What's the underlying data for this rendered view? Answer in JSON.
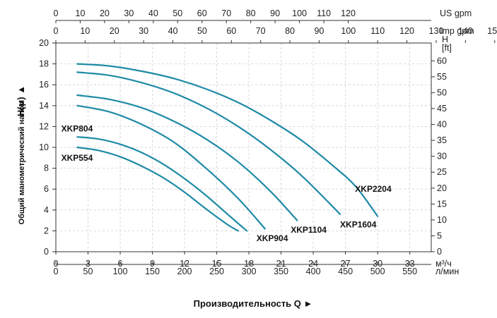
{
  "chart_data": {
    "type": "line",
    "xlabel": "Производительность Q",
    "ylabel": "Общий манометрический напор",
    "ylabel_unit": "H(м)",
    "x_unit": "м³/ч",
    "xlim": [
      0,
      35
    ],
    "ylim": [
      0,
      20
    ],
    "x_ticks": [
      0,
      3,
      6,
      9,
      12,
      15,
      18,
      21,
      24,
      27,
      30,
      33
    ],
    "y_ticks": [
      0,
      2,
      4,
      6,
      8,
      10,
      12,
      14,
      16,
      18,
      20
    ],
    "secondary_axes": {
      "us_gpm": {
        "label": "US gpm",
        "ticks": [
          0,
          10,
          20,
          30,
          40,
          50,
          60,
          70,
          80,
          90,
          100,
          110,
          120
        ],
        "per_m3h": 4.4029
      },
      "imp_gpm": {
        "label": "Imp gpm",
        "ticks": [
          0,
          10,
          20,
          30,
          40,
          50,
          60,
          70,
          80,
          90,
          100,
          110,
          120,
          130,
          140,
          150
        ],
        "per_m3h": 3.6662
      },
      "lpm": {
        "label": "л/мин",
        "ticks": [
          0,
          50,
          100,
          150,
          200,
          250,
          300,
          350,
          400,
          450,
          500,
          550
        ],
        "per_m3h": 16.6667
      },
      "ft": {
        "label_top": "H",
        "label_unit": "[ft]",
        "ticks": [
          0,
          5,
          10,
          15,
          20,
          25,
          30,
          35,
          40,
          45,
          50,
          55,
          60
        ],
        "per_m": 3.2808
      }
    },
    "series": [
      {
        "name": "XKP554",
        "x": [
          2,
          4,
          6,
          8,
          10,
          12,
          14,
          16,
          17
        ],
        "y": [
          10,
          9.7,
          9.1,
          8.2,
          7.1,
          5.7,
          4.1,
          2.6,
          2
        ]
      },
      {
        "name": "XKP804",
        "x": [
          2,
          4,
          6,
          8,
          10,
          12,
          14,
          16,
          17.8
        ],
        "y": [
          11,
          10.8,
          10.3,
          9.5,
          8.4,
          7,
          5.4,
          3.6,
          2
        ]
      },
      {
        "name": "XKP904",
        "x": [
          2,
          5,
          8,
          11,
          14,
          17,
          19.5
        ],
        "y": [
          14,
          13.4,
          12.2,
          10.5,
          8,
          5.1,
          2.2
        ]
      },
      {
        "name": "XKP1104",
        "x": [
          2,
          5,
          8,
          11,
          14,
          17,
          20,
          22.5
        ],
        "y": [
          15,
          14.6,
          13.8,
          12.5,
          10.8,
          8.6,
          5.8,
          3
        ]
      },
      {
        "name": "XKP1604",
        "x": [
          2,
          5,
          8,
          11,
          14,
          17,
          20,
          23,
          26.5
        ],
        "y": [
          17.2,
          16.9,
          16.2,
          15.2,
          13.8,
          12,
          9.8,
          7.2,
          3.6
        ]
      },
      {
        "name": "XKP2204",
        "x": [
          2,
          5,
          8,
          11,
          14,
          17,
          20,
          23,
          26,
          28,
          30
        ],
        "y": [
          18,
          17.8,
          17.3,
          16.6,
          15.6,
          14.3,
          12.6,
          10.6,
          8.1,
          6.2,
          3.4
        ]
      }
    ],
    "series_labels": [
      {
        "name": "XKP804",
        "at": [
          0.5,
          11.8
        ]
      },
      {
        "name": "XKP554",
        "at": [
          0.5,
          9.0
        ]
      },
      {
        "name": "XKP904",
        "at": [
          18.7,
          1.3
        ]
      },
      {
        "name": "XKP1104",
        "at": [
          21.9,
          2.1
        ]
      },
      {
        "name": "XKP1604",
        "at": [
          26.5,
          2.6
        ]
      },
      {
        "name": "XKP2204",
        "at": [
          27.9,
          6.0
        ]
      }
    ],
    "grid": true,
    "line_color": "#1e8aa6"
  }
}
